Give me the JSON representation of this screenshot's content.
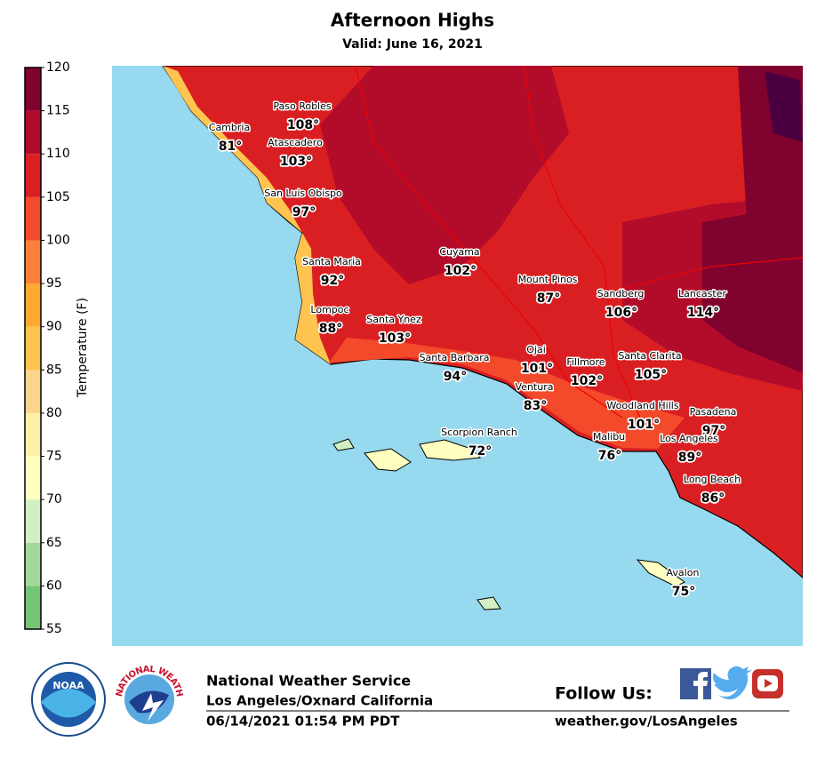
{
  "header": {
    "title": "Afternoon Highs",
    "subtitle": "Valid: June 16, 2021"
  },
  "colorbar": {
    "label": "Temperature (F)",
    "ticks": [
      55,
      60,
      65,
      70,
      75,
      80,
      85,
      90,
      95,
      100,
      105,
      110,
      115,
      120
    ],
    "colors": [
      "#74c476",
      "#a1d99b",
      "#d2f0c4",
      "#ffffbf",
      "#fff0a8",
      "#fdd58a",
      "#fec44f",
      "#feaa2f",
      "#fd7f3a",
      "#f24a2a",
      "#da1f23",
      "#b30c2a",
      "#80022e",
      "#4a0040"
    ]
  },
  "cities": [
    {
      "name": "Paso Robles",
      "temp": "108°"
    },
    {
      "name": "Cambria",
      "temp": "81°"
    },
    {
      "name": "Atascadero",
      "temp": "103°"
    },
    {
      "name": "San Luis Obispo",
      "temp": "97°"
    },
    {
      "name": "Cuyama",
      "temp": "102°"
    },
    {
      "name": "Santa Maria",
      "temp": "92°"
    },
    {
      "name": "Mount Pinos",
      "temp": "87°"
    },
    {
      "name": "Sandberg",
      "temp": "106°"
    },
    {
      "name": "Lancaster",
      "temp": "114°"
    },
    {
      "name": "Lompoc",
      "temp": "88°"
    },
    {
      "name": "Santa Ynez",
      "temp": "103°"
    },
    {
      "name": "Ojai",
      "temp": "101°"
    },
    {
      "name": "Santa Barbara",
      "temp": "94°"
    },
    {
      "name": "Fillmore",
      "temp": "102°"
    },
    {
      "name": "Santa Clarita",
      "temp": "105°"
    },
    {
      "name": "Ventura",
      "temp": "83°"
    },
    {
      "name": "Woodland Hills",
      "temp": "101°"
    },
    {
      "name": "Pasadena",
      "temp": "97°"
    },
    {
      "name": "Scorpion Ranch",
      "temp": "72°"
    },
    {
      "name": "Malibu",
      "temp": "76°"
    },
    {
      "name": "Los Angeles",
      "temp": "89°"
    },
    {
      "name": "Long Beach",
      "temp": "86°"
    },
    {
      "name": "Avalon",
      "temp": "75°"
    }
  ],
  "footer": {
    "agency": "National Weather Service",
    "office": "Los Angeles/Oxnard California",
    "timestamp": "06/14/2021 01:54 PM PDT",
    "follow": "Follow Us:",
    "website": "weather.gov/LosAngeles",
    "noaa_logo": "NOAA",
    "nws_ring": "NATIONAL WEATHER SERVICE"
  }
}
